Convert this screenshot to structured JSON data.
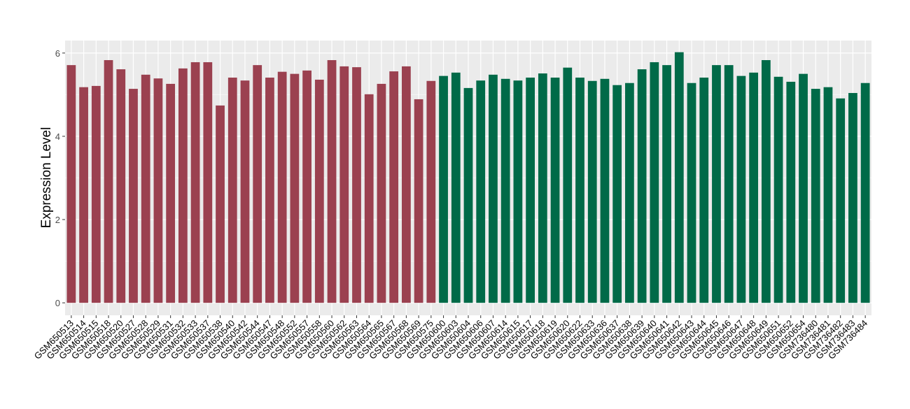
{
  "chart_data": {
    "type": "bar",
    "title": "",
    "xlabel": "",
    "ylabel": "Expression Level",
    "ylim": [
      -0.3,
      6.3
    ],
    "yticks": [
      0,
      2,
      4,
      6
    ],
    "grid": true,
    "legend": "none",
    "colors": {
      "group1": "#9b4150",
      "group2": "#006a48",
      "panel": "#ebebeb",
      "grid": "#ffffff"
    },
    "categories": [
      "GSM650513",
      "GSM650514",
      "GSM650515",
      "GSM650518",
      "GSM650520",
      "GSM650527",
      "GSM650528",
      "GSM650529",
      "GSM650531",
      "GSM650532",
      "GSM650533",
      "GSM650537",
      "GSM650538",
      "GSM650540",
      "GSM650542",
      "GSM650544",
      "GSM650547",
      "GSM650548",
      "GSM650552",
      "GSM650557",
      "GSM650558",
      "GSM650560",
      "GSM650562",
      "GSM650563",
      "GSM650564",
      "GSM650565",
      "GSM650567",
      "GSM650568",
      "GSM650569",
      "GSM650575",
      "GSM650600",
      "GSM650603",
      "GSM650604",
      "GSM650606",
      "GSM650607",
      "GSM650614",
      "GSM650615",
      "GSM650617",
      "GSM650618",
      "GSM650619",
      "GSM650620",
      "GSM650622",
      "GSM650633",
      "GSM650636",
      "GSM650637",
      "GSM650638",
      "GSM650639",
      "GSM650640",
      "GSM650641",
      "GSM650642",
      "GSM650643",
      "GSM650644",
      "GSM650645",
      "GSM650646",
      "GSM650647",
      "GSM650648",
      "GSM650649",
      "GSM650651",
      "GSM650652",
      "GSM650654",
      "GSM736480",
      "GSM736481",
      "GSM736482",
      "GSM736483",
      "GSM736484"
    ],
    "values": [
      5.71,
      5.18,
      5.21,
      5.83,
      5.61,
      5.14,
      5.48,
      5.39,
      5.26,
      5.63,
      5.78,
      5.78,
      4.74,
      5.41,
      5.34,
      5.71,
      5.41,
      5.55,
      5.5,
      5.58,
      5.36,
      5.83,
      5.68,
      5.66,
      5.01,
      5.26,
      5.56,
      5.68,
      4.89,
      5.33,
      5.45,
      5.53,
      5.16,
      5.34,
      5.48,
      5.38,
      5.34,
      5.41,
      5.51,
      5.41,
      5.65,
      5.41,
      5.33,
      5.38,
      5.23,
      5.28,
      5.61,
      5.78,
      5.71,
      6.02,
      5.28,
      5.41,
      5.71,
      5.71,
      5.45,
      5.53,
      5.83,
      5.43,
      5.31,
      5.5,
      5.14,
      5.18,
      4.91,
      5.04,
      5.28
    ],
    "groups": [
      1,
      1,
      1,
      1,
      1,
      1,
      1,
      1,
      1,
      1,
      1,
      1,
      1,
      1,
      1,
      1,
      1,
      1,
      1,
      1,
      1,
      1,
      1,
      1,
      1,
      1,
      1,
      1,
      1,
      1,
      2,
      2,
      2,
      2,
      2,
      2,
      2,
      2,
      2,
      2,
      2,
      2,
      2,
      2,
      2,
      2,
      2,
      2,
      2,
      2,
      2,
      2,
      2,
      2,
      2,
      2,
      2,
      2,
      2,
      2,
      2,
      2,
      2,
      2,
      2
    ]
  }
}
